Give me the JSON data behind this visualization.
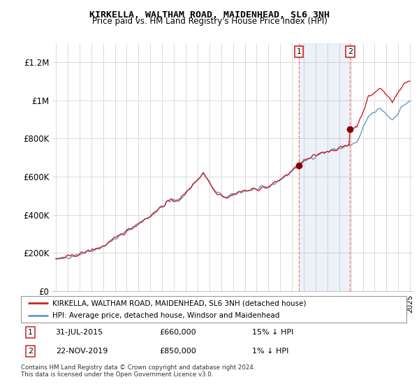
{
  "title1": "KIRKELLA, WALTHAM ROAD, MAIDENHEAD, SL6 3NH",
  "title2": "Price paid vs. HM Land Registry's House Price Index (HPI)",
  "ylim": [
    0,
    1300000
  ],
  "yticks": [
    0,
    200000,
    400000,
    600000,
    800000,
    1000000,
    1200000
  ],
  "ytick_labels": [
    "£0",
    "£200K",
    "£400K",
    "£600K",
    "£800K",
    "£1M",
    "£1.2M"
  ],
  "hpi_color": "#6699cc",
  "price_color": "#cc2222",
  "sale1_x": 2015.58,
  "sale1_y": 660000,
  "sale2_x": 2019.9,
  "sale2_y": 850000,
  "sale1_date": "31-JUL-2015",
  "sale1_price": "£660,000",
  "sale1_note": "15% ↓ HPI",
  "sale2_date": "22-NOV-2019",
  "sale2_price": "£850,000",
  "sale2_note": "1% ↓ HPI",
  "legend_label1": "KIRKELLA, WALTHAM ROAD, MAIDENHEAD, SL6 3NH (detached house)",
  "legend_label2": "HPI: Average price, detached house, Windsor and Maidenhead",
  "footnote": "Contains HM Land Registry data © Crown copyright and database right 2024.\nThis data is licensed under the Open Government Licence v3.0.",
  "background_color": "#ffffff",
  "grid_color": "#cccccc",
  "xlim_left": 1994.7,
  "xlim_right": 2025.3
}
